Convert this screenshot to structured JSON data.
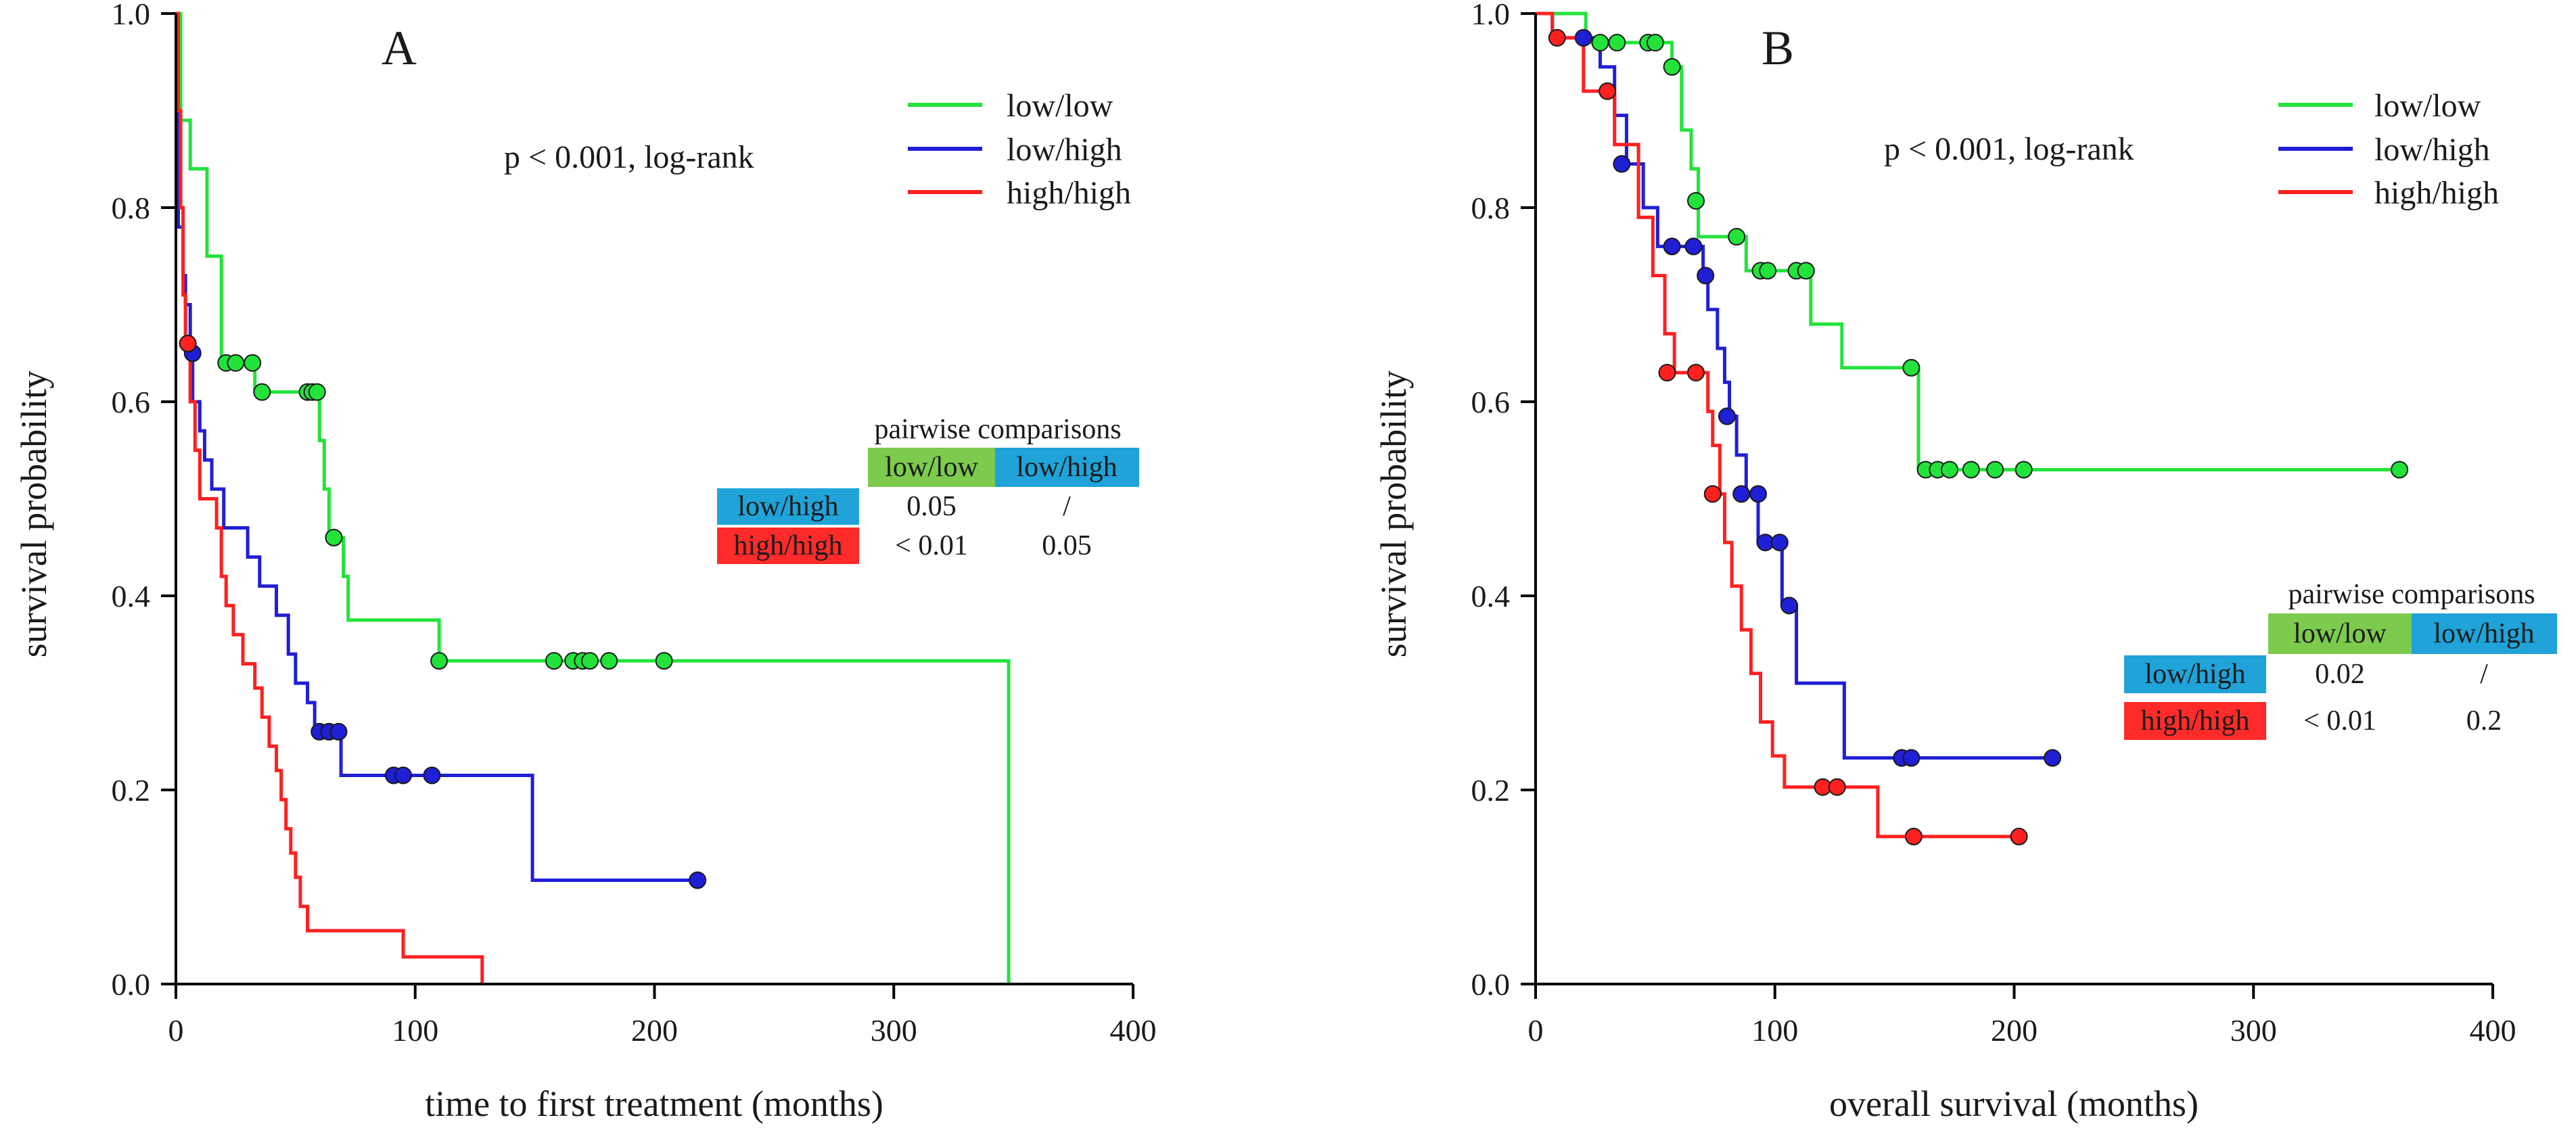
{
  "colors": {
    "low_low": "#22e33a",
    "low_high": "#1f1fd6",
    "high_high": "#ff2020",
    "cmp_green": "#7dcb4d",
    "cmp_blue": "#1fa3d9",
    "cmp_red": "#ff2a2a"
  },
  "chart_data": [
    {
      "type": "line",
      "panel": "A",
      "title": "",
      "xlabel": "time to first treatment (months)",
      "ylabel": "survival probability",
      "xlim": [
        0,
        400
      ],
      "ylim": [
        0,
        1.0
      ],
      "x_ticks": [
        "0",
        "100",
        "200",
        "300",
        "400"
      ],
      "y_ticks": [
        "0.0",
        "0.2",
        "0.4",
        "0.6",
        "0.8",
        "1.0"
      ],
      "annotation": "p < 0.001, log-rank",
      "legend": [
        "low/low",
        "low/high",
        "high/high"
      ],
      "legend_position": "top-right",
      "series": [
        {
          "name": "low/low",
          "color_key": "low_low",
          "steps": [
            [
              0,
              1.0
            ],
            [
              2,
              0.89
            ],
            [
              6,
              0.84
            ],
            [
              13,
              0.75
            ],
            [
              19,
              0.64
            ],
            [
              33,
              0.61
            ],
            [
              60,
              0.56
            ],
            [
              62,
              0.51
            ],
            [
              64,
              0.46
            ],
            [
              70,
              0.42
            ],
            [
              72,
              0.375
            ],
            [
              110,
              0.333
            ],
            [
              348,
              0.333
            ],
            [
              348,
              0.0
            ]
          ],
          "censored": [
            [
              21,
              0.64
            ],
            [
              25,
              0.64
            ],
            [
              32,
              0.64
            ],
            [
              36,
              0.61
            ],
            [
              55,
              0.61
            ],
            [
              57,
              0.61
            ],
            [
              59,
              0.61
            ],
            [
              66,
              0.46
            ],
            [
              110,
              0.333
            ],
            [
              158,
              0.333
            ],
            [
              166,
              0.333
            ],
            [
              170,
              0.333
            ],
            [
              173,
              0.333
            ],
            [
              181,
              0.333
            ],
            [
              204,
              0.333
            ]
          ]
        },
        {
          "name": "low/high",
          "color_key": "low_high",
          "steps": [
            [
              0,
              1.0
            ],
            [
              1,
              0.78
            ],
            [
              3,
              0.73
            ],
            [
              4,
              0.7
            ],
            [
              6,
              0.65
            ],
            [
              7,
              0.6
            ],
            [
              10,
              0.57
            ],
            [
              12,
              0.54
            ],
            [
              15,
              0.51
            ],
            [
              20,
              0.47
            ],
            [
              30,
              0.44
            ],
            [
              35,
              0.41
            ],
            [
              42,
              0.38
            ],
            [
              47,
              0.34
            ],
            [
              50,
              0.31
            ],
            [
              55,
              0.29
            ],
            [
              58,
              0.26
            ],
            [
              69,
              0.215
            ],
            [
              149,
              0.215
            ],
            [
              149,
              0.107
            ],
            [
              218,
              0.107
            ]
          ],
          "censored": [
            [
              7,
              0.65
            ],
            [
              60,
              0.26
            ],
            [
              64,
              0.26
            ],
            [
              68,
              0.26
            ],
            [
              91,
              0.215
            ],
            [
              95,
              0.215
            ],
            [
              107,
              0.215
            ],
            [
              218,
              0.107
            ]
          ]
        },
        {
          "name": "high/high",
          "color_key": "high_high",
          "steps": [
            [
              0,
              1.0
            ],
            [
              1,
              0.9
            ],
            [
              2,
              0.8
            ],
            [
              3,
              0.71
            ],
            [
              4,
              0.66
            ],
            [
              6,
              0.6
            ],
            [
              8,
              0.55
            ],
            [
              10,
              0.5
            ],
            [
              17,
              0.47
            ],
            [
              19,
              0.42
            ],
            [
              21,
              0.39
            ],
            [
              24,
              0.36
            ],
            [
              28,
              0.33
            ],
            [
              33,
              0.305
            ],
            [
              36,
              0.275
            ],
            [
              39,
              0.245
            ],
            [
              42,
              0.22
            ],
            [
              44,
              0.19
            ],
            [
              46,
              0.16
            ],
            [
              48,
              0.135
            ],
            [
              50,
              0.11
            ],
            [
              52,
              0.08
            ],
            [
              55,
              0.055
            ],
            [
              95,
              0.028
            ],
            [
              128,
              0.028
            ],
            [
              128,
              0.0
            ]
          ],
          "censored": [
            [
              5,
              0.66
            ]
          ]
        }
      ],
      "pairwise": {
        "title": "pairwise comparisons",
        "col_headers": [
          "low/low",
          "low/high"
        ],
        "rows": [
          {
            "label": "low/high",
            "values": [
              "0.05",
              "/"
            ]
          },
          {
            "label": "high/high",
            "values": [
              "< 0.01",
              "0.05"
            ]
          }
        ]
      }
    },
    {
      "type": "line",
      "panel": "B",
      "title": "",
      "xlabel": "overall survival (months)",
      "ylabel": "survival probability",
      "xlim": [
        0,
        400
      ],
      "ylim": [
        0,
        1.0
      ],
      "x_ticks": [
        "0",
        "100",
        "200",
        "300",
        "400"
      ],
      "y_ticks": [
        "0.0",
        "0.2",
        "0.4",
        "0.6",
        "0.8",
        "1.0"
      ],
      "annotation": "p < 0.001, log-rank",
      "legend": [
        "low/low",
        "low/high",
        "high/high"
      ],
      "legend_position": "top-right",
      "series": [
        {
          "name": "low/low",
          "color_key": "low_low",
          "steps": [
            [
              0,
              1.0
            ],
            [
              21,
              0.97
            ],
            [
              57,
              0.945
            ],
            [
              61,
              0.88
            ],
            [
              65,
              0.84
            ],
            [
              68,
              0.77
            ],
            [
              85,
              0.77
            ],
            [
              88,
              0.735
            ],
            [
              115,
              0.68
            ],
            [
              128,
              0.635
            ],
            [
              158,
              0.635
            ],
            [
              160,
              0.53
            ],
            [
              362,
              0.53
            ]
          ],
          "censored": [
            [
              27,
              0.97
            ],
            [
              34,
              0.97
            ],
            [
              47,
              0.97
            ],
            [
              50,
              0.97
            ],
            [
              57,
              0.945
            ],
            [
              67,
              0.807
            ],
            [
              84,
              0.77
            ],
            [
              94,
              0.735
            ],
            [
              97,
              0.735
            ],
            [
              109,
              0.735
            ],
            [
              113,
              0.735
            ],
            [
              157,
              0.635
            ],
            [
              163,
              0.53
            ],
            [
              168,
              0.53
            ],
            [
              173,
              0.53
            ],
            [
              182,
              0.53
            ],
            [
              192,
              0.53
            ],
            [
              204,
              0.53
            ],
            [
              361,
              0.53
            ]
          ]
        },
        {
          "name": "low/high",
          "color_key": "low_high",
          "steps": [
            [
              0,
              1.0
            ],
            [
              7,
              0.975
            ],
            [
              27,
              0.945
            ],
            [
              33,
              0.895
            ],
            [
              38,
              0.845
            ],
            [
              45,
              0.8
            ],
            [
              51,
              0.76
            ],
            [
              70,
              0.73
            ],
            [
              72,
              0.695
            ],
            [
              76,
              0.655
            ],
            [
              79,
              0.62
            ],
            [
              81,
              0.585
            ],
            [
              84,
              0.545
            ],
            [
              88,
              0.505
            ],
            [
              93,
              0.455
            ],
            [
              103,
              0.39
            ],
            [
              109,
              0.31
            ],
            [
              129,
              0.233
            ],
            [
              216,
              0.233
            ]
          ],
          "censored": [
            [
              20,
              0.975
            ],
            [
              36,
              0.845
            ],
            [
              57,
              0.76
            ],
            [
              66,
              0.76
            ],
            [
              71,
              0.73
            ],
            [
              80,
              0.585
            ],
            [
              86,
              0.505
            ],
            [
              93,
              0.505
            ],
            [
              96,
              0.455
            ],
            [
              102,
              0.455
            ],
            [
              106,
              0.39
            ],
            [
              153,
              0.233
            ],
            [
              157,
              0.233
            ],
            [
              216,
              0.233
            ]
          ]
        },
        {
          "name": "high/high",
          "color_key": "high_high",
          "steps": [
            [
              0,
              1.0
            ],
            [
              7,
              0.975
            ],
            [
              20,
              0.92
            ],
            [
              33,
              0.865
            ],
            [
              43,
              0.79
            ],
            [
              49,
              0.73
            ],
            [
              54,
              0.67
            ],
            [
              58,
              0.63
            ],
            [
              72,
              0.59
            ],
            [
              74,
              0.555
            ],
            [
              77,
              0.505
            ],
            [
              79,
              0.455
            ],
            [
              82,
              0.41
            ],
            [
              86,
              0.365
            ],
            [
              90,
              0.32
            ],
            [
              94,
              0.27
            ],
            [
              99,
              0.235
            ],
            [
              104,
              0.203
            ],
            [
              130,
              0.203
            ],
            [
              143,
              0.152
            ],
            [
              202,
              0.152
            ]
          ],
          "censored": [
            [
              9,
              0.975
            ],
            [
              30,
              0.92
            ],
            [
              55,
              0.63
            ],
            [
              67,
              0.63
            ],
            [
              74,
              0.505
            ],
            [
              120,
              0.203
            ],
            [
              126,
              0.203
            ],
            [
              158,
              0.152
            ],
            [
              202,
              0.152
            ]
          ]
        }
      ],
      "pairwise": {
        "title": "pairwise comparisons",
        "col_headers": [
          "low/low",
          "low/high"
        ],
        "rows": [
          {
            "label": "low/high",
            "values": [
              "0.02",
              "/"
            ]
          },
          {
            "label": "high/high",
            "values": [
              "< 0.01",
              "0.2"
            ]
          }
        ]
      }
    }
  ]
}
